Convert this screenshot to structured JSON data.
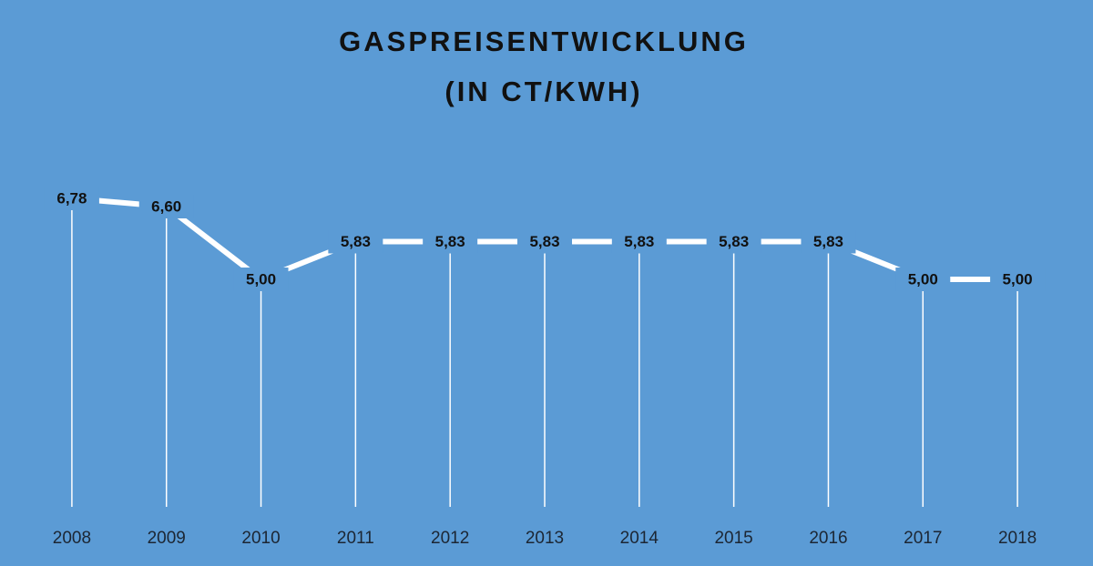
{
  "chart_data": {
    "type": "line",
    "title": "GASPREISENTWICKLUNG",
    "subtitle": "(IN CT/KWH)",
    "categories": [
      "2008",
      "2009",
      "2010",
      "2011",
      "2012",
      "2013",
      "2014",
      "2015",
      "2016",
      "2017",
      "2018"
    ],
    "values": [
      6.78,
      6.6,
      5.0,
      5.83,
      5.83,
      5.83,
      5.83,
      5.83,
      5.83,
      5.0,
      5.0
    ],
    "value_labels": [
      "6,78",
      "6,60",
      "5,00",
      "5,83",
      "5,83",
      "5,83",
      "5,83",
      "5,83",
      "5,83",
      "5,00",
      "5,00"
    ],
    "color": "#ffffff",
    "background": "#5b9bd5",
    "ylim": [
      0,
      7
    ]
  }
}
